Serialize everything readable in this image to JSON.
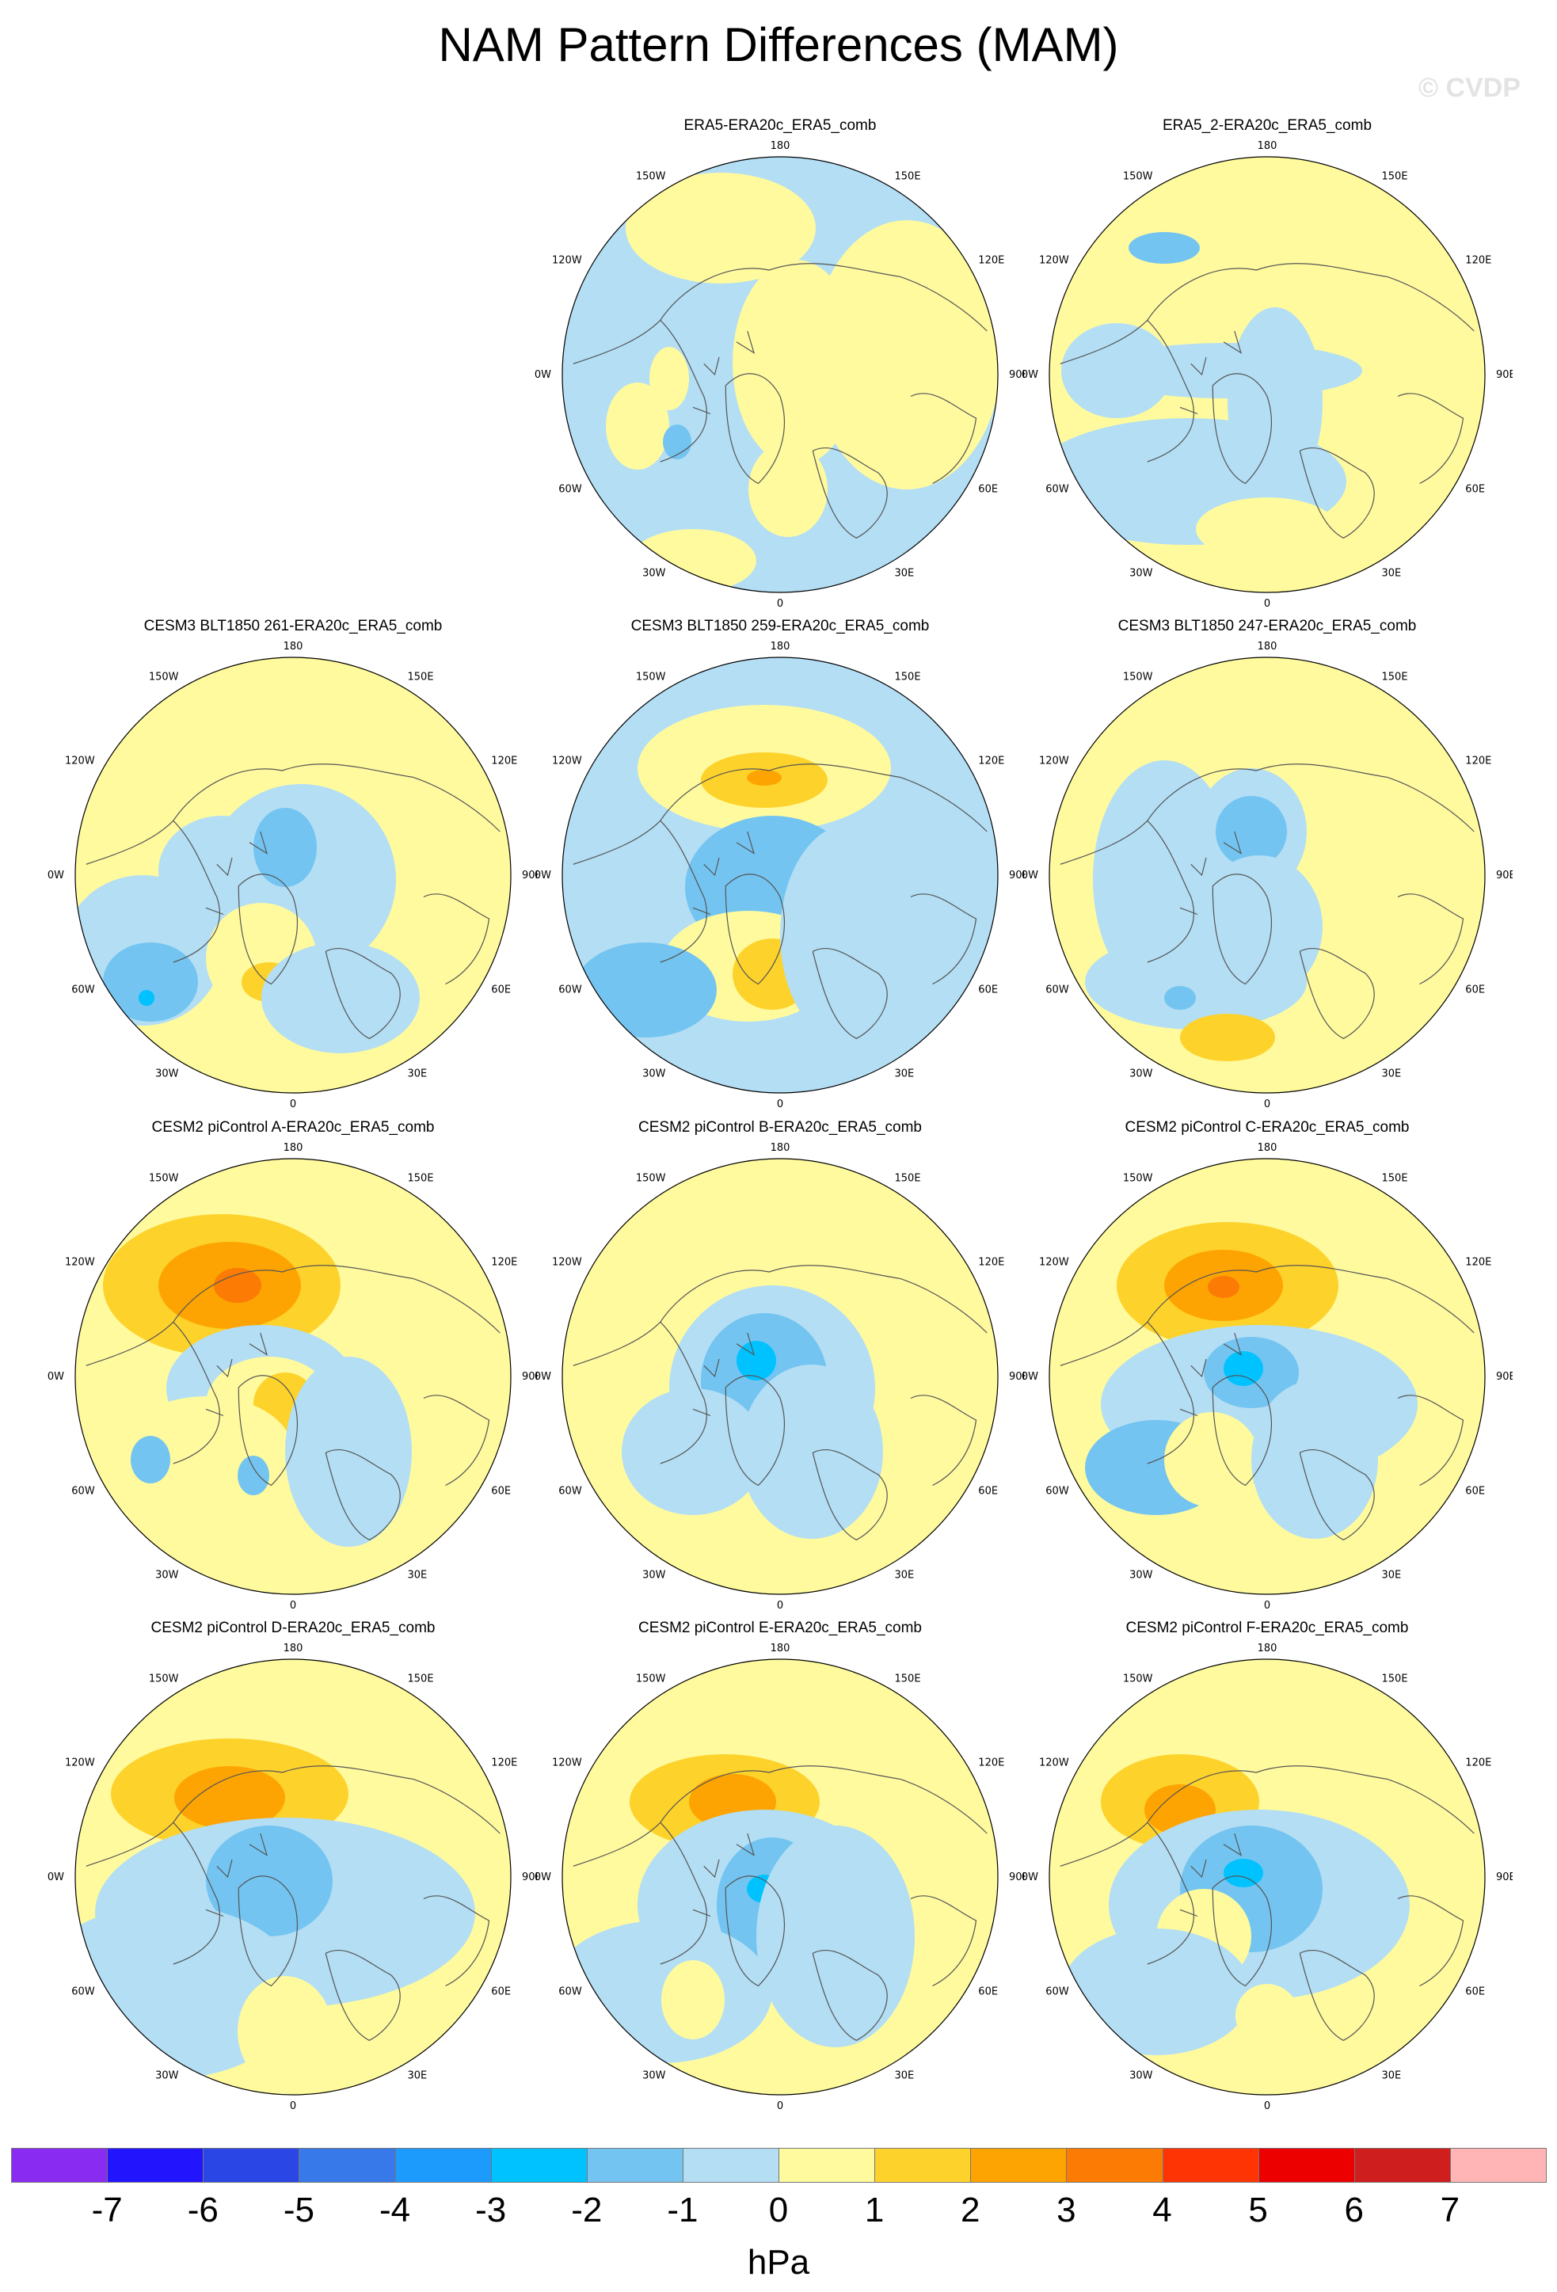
{
  "title": "NAM Pattern Differences (MAM)",
  "watermark": "© CVDP",
  "units": "hPa",
  "palette": {
    "pos1": "#FFFA9E",
    "pos2": "#FDD22B",
    "pos3": "#FDA402",
    "pos4": "#FB7B05",
    "neg1": "#B3DEF4",
    "neg2": "#73C4F1",
    "neg3": "#00C2FF",
    "land": "#555555"
  },
  "panel_base_level": {
    "ERA5-ERA20c_ERA5_comb": "neg1",
    "ERA5_2-ERA20c_ERA5_comb": "pos1",
    "CESM3 BLT1850 261-ERA20c_ERA5_comb": "pos1",
    "CESM3 BLT1850 259-ERA20c_ERA5_comb": "neg1",
    "CESM3 BLT1850 247-ERA20c_ERA5_comb": "pos1",
    "CESM2 piControl A-ERA20c_ERA5_comb": "pos1",
    "CESM2 piControl B-ERA20c_ERA5_comb": "pos1",
    "CESM2 piControl C-ERA20c_ERA5_comb": "pos1",
    "CESM2 piControl D-ERA20c_ERA5_comb": "pos1",
    "CESM2 piControl E-ERA20c_ERA5_comb": "pos1",
    "CESM2 piControl F-ERA20c_ERA5_comb": "pos1"
  },
  "panels": [
    {
      "title": "ERA5-ERA20c_ERA5_comb"
    },
    {
      "title": "ERA5_2-ERA20c_ERA5_comb"
    },
    {
      "title": "CESM3 BLT1850 261-ERA20c_ERA5_comb"
    },
    {
      "title": "CESM3 BLT1850 259-ERA20c_ERA5_comb"
    },
    {
      "title": "CESM3 BLT1850 247-ERA20c_ERA5_comb"
    },
    {
      "title": "CESM2 piControl A-ERA20c_ERA5_comb"
    },
    {
      "title": "CESM2 piControl B-ERA20c_ERA5_comb"
    },
    {
      "title": "CESM2 piControl C-ERA20c_ERA5_comb"
    },
    {
      "title": "CESM2 piControl D-ERA20c_ERA5_comb"
    },
    {
      "title": "CESM2 piControl E-ERA20c_ERA5_comb"
    },
    {
      "title": "CESM2 piControl F-ERA20c_ERA5_comb"
    }
  ],
  "lon_labels": [
    "180",
    "150E",
    "120E",
    "90E",
    "60E",
    "30E",
    "0",
    "30W",
    "60W",
    "90W",
    "120W",
    "150W"
  ],
  "colorbar": {
    "colors": [
      "#8A2BF2",
      "#2215FE",
      "#2A47E6",
      "#3879EA",
      "#1C9BFC",
      "#00C2FF",
      "#73C4F1",
      "#B3DEF4",
      "#FFFA9E",
      "#FDD22B",
      "#FDA402",
      "#FB7B05",
      "#FE3404",
      "#EC0000",
      "#CF1E1E",
      "#FFB5B5"
    ],
    "ticks": [
      "-7",
      "-6",
      "-5",
      "-4",
      "-3",
      "-2",
      "-1",
      "0",
      "1",
      "2",
      "3",
      "4",
      "5",
      "6",
      "7"
    ]
  }
}
